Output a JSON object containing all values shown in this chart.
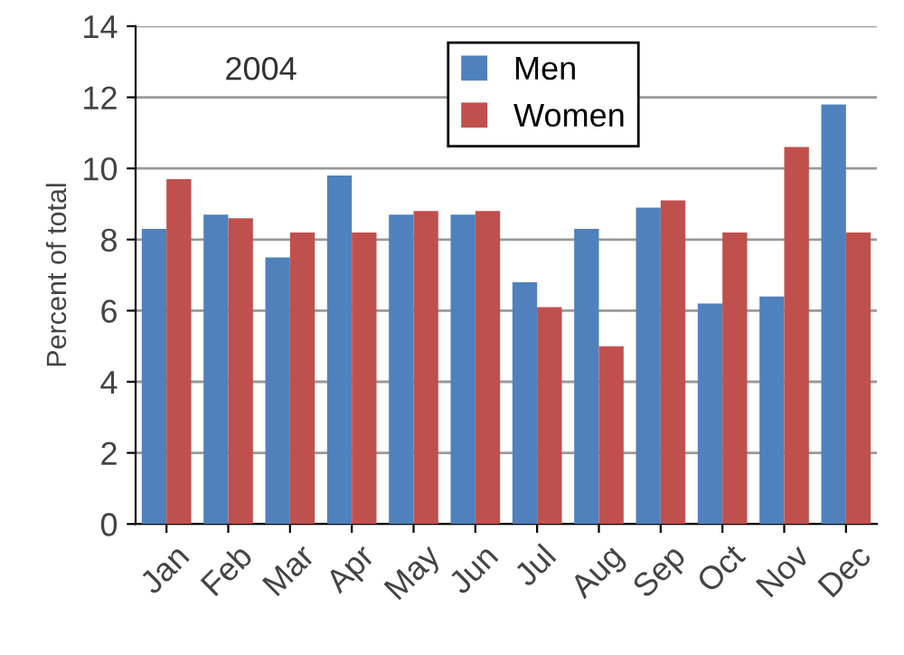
{
  "chart_data": {
    "type": "bar",
    "ylabel": "Percent of total",
    "annotations": [
      "2004"
    ],
    "categories": [
      "Jan",
      "Feb",
      "Mar",
      "Apr",
      "May",
      "Jun",
      "Jul",
      "Aug",
      "Sep",
      "Oct",
      "Nov",
      "Dec"
    ],
    "series": [
      {
        "name": "Men",
        "color": "#4f81bd",
        "values": [
          8.3,
          8.7,
          7.5,
          9.8,
          8.7,
          8.7,
          6.8,
          8.3,
          8.9,
          6.2,
          6.4,
          11.8
        ]
      },
      {
        "name": "Women",
        "color": "#c0504d",
        "values": [
          9.7,
          8.6,
          8.2,
          8.2,
          8.8,
          8.8,
          6.1,
          5.0,
          9.1,
          8.2,
          10.6,
          8.2
        ]
      }
    ],
    "ylim": [
      0,
      14
    ],
    "yticks": [
      0,
      2,
      4,
      6,
      8,
      10,
      12,
      14
    ],
    "grid": "y",
    "legend": "top right"
  }
}
